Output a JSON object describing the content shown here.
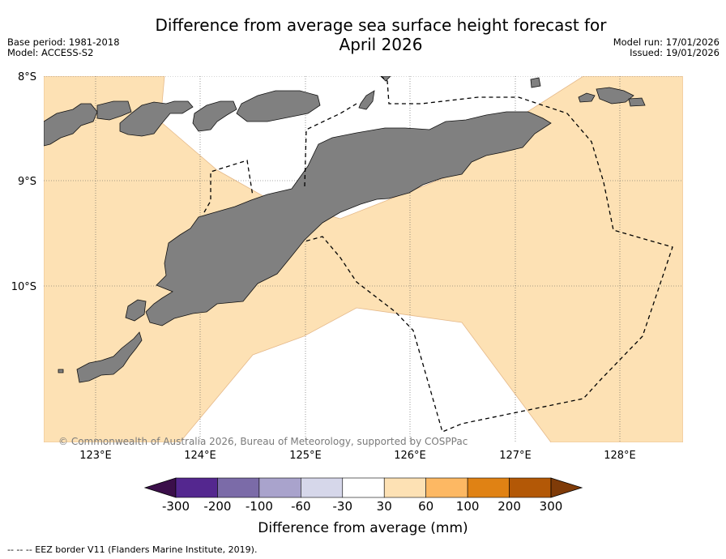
{
  "title_line1": "Difference from average sea surface height forecast for",
  "title_line2": "April 2026",
  "meta_left": [
    "Base period: 1981-2018",
    "Model: ACCESS-S2"
  ],
  "meta_right": [
    "Model run: 17/01/2026",
    "Issued: 19/01/2026"
  ],
  "copyright": "© Commonwealth of Australia 2026, Bureau of Meteorology, supported by COSPPac",
  "lat_labels": [
    "8°S",
    "9°S",
    "10°S"
  ],
  "lon_labels": [
    "123°E",
    "124°E",
    "125°E",
    "126°E",
    "127°E",
    "128°E"
  ],
  "colorbar": {
    "ticks": [
      "-300",
      "-200",
      "-100",
      "-60",
      "-30",
      "30",
      "60",
      "100",
      "200",
      "300"
    ],
    "colors": [
      "#3b0f4a",
      "#54278f",
      "#7b6ba8",
      "#a9a3cc",
      "#d6d7ea",
      "#ffffff",
      "#fde1b4",
      "#fdb863",
      "#e08214",
      "#b35806",
      "#7f3b08"
    ],
    "label": "Difference from average (mm)"
  },
  "legend": {
    "eez": "--  --  -- EEZ border V11 (Flanders Marine Institute, 2019)."
  },
  "colors": {
    "land": "#808080",
    "positive_anomaly": "#fde1b4",
    "ocean_neutral": "#ffffff"
  }
}
